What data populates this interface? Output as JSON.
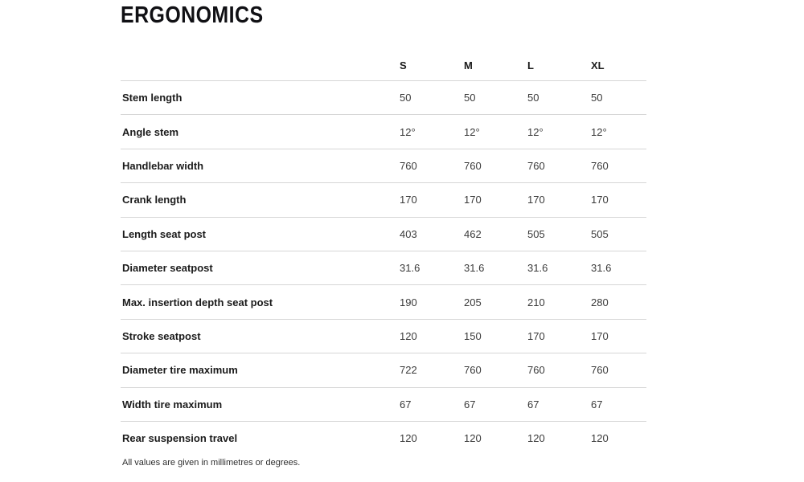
{
  "chart_data": {
    "type": "table",
    "title": "ERGONOMICS",
    "columns": [
      "S",
      "M",
      "L",
      "XL"
    ],
    "rows": [
      {
        "label": "Stem length",
        "values": [
          "50",
          "50",
          "50",
          "50"
        ]
      },
      {
        "label": "Angle stem",
        "values": [
          "12°",
          "12°",
          "12°",
          "12°"
        ]
      },
      {
        "label": "Handlebar width",
        "values": [
          "760",
          "760",
          "760",
          "760"
        ]
      },
      {
        "label": "Crank length",
        "values": [
          "170",
          "170",
          "170",
          "170"
        ]
      },
      {
        "label": "Length seat post",
        "values": [
          "403",
          "462",
          "505",
          "505"
        ]
      },
      {
        "label": "Diameter seatpost",
        "values": [
          "31.6",
          "31.6",
          "31.6",
          "31.6"
        ]
      },
      {
        "label": "Max. insertion depth seat post",
        "values": [
          "190",
          "205",
          "210",
          "280"
        ]
      },
      {
        "label": "Stroke seatpost",
        "values": [
          "120",
          "150",
          "170",
          "170"
        ]
      },
      {
        "label": "Diameter tire maximum",
        "values": [
          "722",
          "760",
          "760",
          "760"
        ]
      },
      {
        "label": "Width tire maximum",
        "values": [
          "67",
          "67",
          "67",
          "67"
        ]
      },
      {
        "label": "Rear suspension travel",
        "values": [
          "120",
          "120",
          "120",
          "120"
        ]
      }
    ],
    "footnote": "All values are given in millimetres or degrees.",
    "layout": {
      "grid": "horizontal-dividers-only",
      "value_alignment": "left",
      "header_position": "top"
    }
  },
  "colors": {
    "title_text": "#101014",
    "label_text": "#1b1b1b",
    "value_text": "#3a3a3a",
    "footnote_text": "#2e2e2e",
    "divider": "#d6d6d6",
    "background": "#ffffff"
  }
}
